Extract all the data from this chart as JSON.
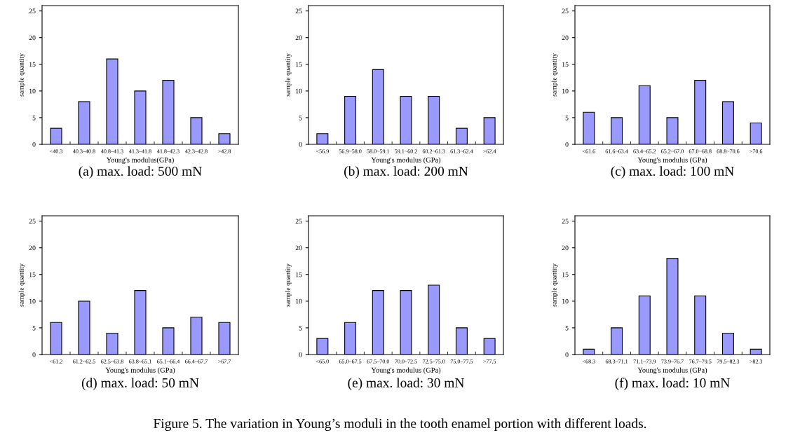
{
  "chart_data": [
    {
      "type": "bar",
      "title": "(a) max. load: 500 mN",
      "xlabel": "Young's modulus(GPa)",
      "ylabel": "sample quantity",
      "categories": [
        "<40.3",
        "40.3–40.8",
        "40.8–41.3",
        "41.3–41.8",
        "41.8–42.3",
        "42.3–42.8",
        ">42.8"
      ],
      "values": [
        3,
        8,
        16,
        10,
        12,
        5,
        2
      ],
      "color": "#9999ff",
      "ylim": [
        0,
        26
      ],
      "yticks": [
        0,
        5,
        10,
        15,
        20,
        25
      ],
      "grid": false,
      "legend": false
    },
    {
      "type": "bar",
      "title": "(b) max. load: 200 mN",
      "xlabel": "Young's modulus (GPa)",
      "ylabel": "sample quantity",
      "categories": [
        "<56.9",
        "56.9~58.0",
        "58.0~59.1",
        "59.1~60.2",
        "60.2~61.3",
        "61.3~62.4",
        ">62.4"
      ],
      "values": [
        2,
        9,
        14,
        9,
        9,
        3,
        5
      ],
      "color": "#9999ff",
      "ylim": [
        0,
        26
      ],
      "yticks": [
        0,
        5,
        10,
        15,
        20,
        25
      ],
      "grid": false,
      "legend": false
    },
    {
      "type": "bar",
      "title": "(c) max. load: 100 mN",
      "xlabel": "Young's modulus (GPa)",
      "ylabel": "sample quantity",
      "categories": [
        "<61.6",
        "61.6~63.4",
        "63.4~65.2",
        "65.2~67.0",
        "67.0~68.8",
        "68.8~70.6",
        ">70.6"
      ],
      "values": [
        6,
        5,
        11,
        5,
        12,
        8,
        4
      ],
      "color": "#9999ff",
      "ylim": [
        0,
        26
      ],
      "yticks": [
        0,
        5,
        10,
        15,
        20,
        25
      ],
      "grid": false,
      "legend": false
    },
    {
      "type": "bar",
      "title": "(d) max. load: 50 mN",
      "xlabel": "Young's modulus (GPa)",
      "ylabel": "sample quantity",
      "categories": [
        "<61.2",
        "61.2~62.5",
        "62.5~63.8",
        "63.8~65.1",
        "65.1~66.4",
        "66.4~67.7",
        ">67.7"
      ],
      "values": [
        6,
        10,
        4,
        12,
        5,
        7,
        6
      ],
      "color": "#9999ff",
      "ylim": [
        0,
        26
      ],
      "yticks": [
        0,
        5,
        10,
        15,
        20,
        25
      ],
      "grid": false,
      "legend": false
    },
    {
      "type": "bar",
      "title": "(e) max. load: 30 mN",
      "xlabel": "Young's modulus (GPa)",
      "ylabel": "sample quantity",
      "categories": [
        "<65.0",
        "65.0–67.5",
        "67.5–70.0",
        "70.0–72.5",
        "72.5–75.0",
        "75.0–77.5",
        ">77.5"
      ],
      "values": [
        3,
        6,
        12,
        12,
        13,
        5,
        3
      ],
      "color": "#9999ff",
      "ylim": [
        0,
        26
      ],
      "yticks": [
        0,
        5,
        10,
        15,
        20,
        25
      ],
      "grid": false,
      "legend": false
    },
    {
      "type": "bar",
      "title": "(f) max. load: 10 mN",
      "xlabel": "Young's modulus (GPa)",
      "ylabel": "sample quantity",
      "categories": [
        "<68.3",
        "68.3–71.1",
        "71.1–73.9",
        "73.9–76.7",
        "76.7–79.5",
        "79.5–82.3",
        ">82.3"
      ],
      "values": [
        1,
        5,
        11,
        18,
        11,
        4,
        1
      ],
      "color": "#9999ff",
      "ylim": [
        0,
        26
      ],
      "yticks": [
        0,
        5,
        10,
        15,
        20,
        25
      ],
      "grid": false,
      "legend": false,
      "annotations": [
        "Figure 5. The variation in Young’s moduli in the tooth enamel portion with different loads."
      ]
    }
  ]
}
